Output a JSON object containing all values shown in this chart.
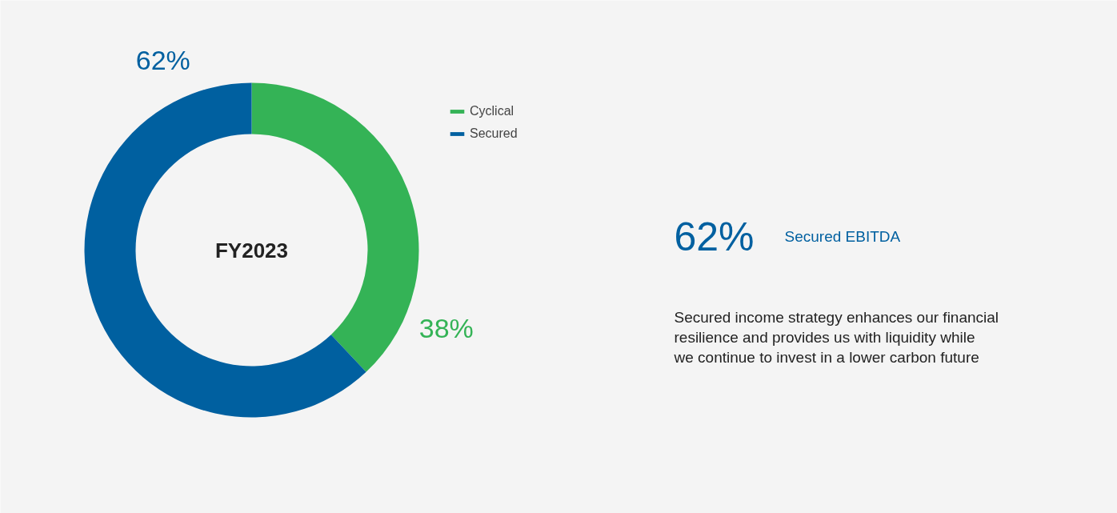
{
  "chart_data": {
    "type": "donut",
    "categories": [
      "Cyclical",
      "Secured"
    ],
    "values": [
      38,
      62
    ],
    "colors": [
      "#34b356",
      "#0060a0"
    ],
    "value_labels": [
      "38%",
      "62%"
    ],
    "legend": "top right",
    "annotations": [
      "FY2023",
      "62%",
      "Secured EBITDA",
      "Secured income strategy enhances our financial resilience and provides us with liquidity while we continue to invest in a lower carbon future"
    ]
  }
}
